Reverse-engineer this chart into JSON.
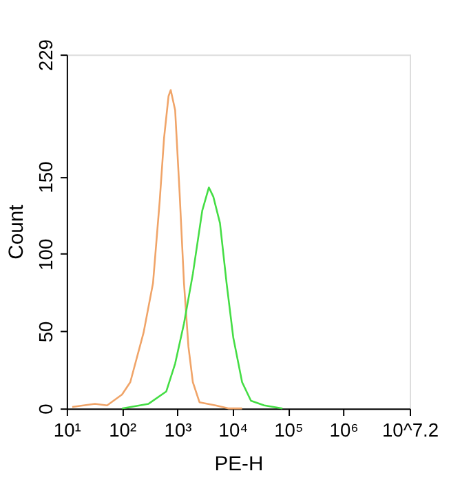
{
  "chart_data": {
    "type": "line",
    "xlabel": "PE-H",
    "ylabel": "Count",
    "log": "x",
    "grid": false,
    "marker": "none",
    "line_style": "solid",
    "xlim": [
      10,
      15848931.92
    ],
    "xticks": [
      {
        "value": 10,
        "label": "10¹"
      },
      {
        "value": 100,
        "label": "10²"
      },
      {
        "value": 1000,
        "label": "10³"
      },
      {
        "value": 10000,
        "label": "10⁴"
      },
      {
        "value": 100000,
        "label": "10⁵"
      },
      {
        "value": 1000000,
        "label": "10⁶"
      },
      {
        "value": 15848931.92,
        "label": "10^7.2"
      }
    ],
    "ylim": [
      0,
      229
    ],
    "yticks": [
      0,
      50,
      100,
      150,
      229
    ],
    "series": [
      {
        "color": "#f0a468",
        "x": [
          12.6,
          32.4,
          53.7,
          100,
          141,
          245,
          363,
          479,
          575,
          692,
          759,
          912,
          1096,
          1318,
          1585,
          1905,
          2512,
          4898,
          8511,
          14791
        ],
        "values": [
          1,
          3,
          2,
          9,
          17,
          49,
          81,
          134,
          175,
          202,
          206,
          193,
          140,
          81,
          40,
          17,
          4,
          2,
          0,
          0
        ]
      },
      {
        "color": "#44dd44",
        "x": [
          100,
          302,
          631,
          912,
          1318,
          1905,
          2818,
          3715,
          4467,
          5888,
          7762,
          10233,
          14791,
          21380,
          37154,
          79433
        ],
        "values": [
          0,
          3,
          11,
          29,
          55,
          87,
          128,
          143,
          137,
          120,
          81,
          46,
          17,
          5,
          2,
          0
        ]
      }
    ]
  }
}
